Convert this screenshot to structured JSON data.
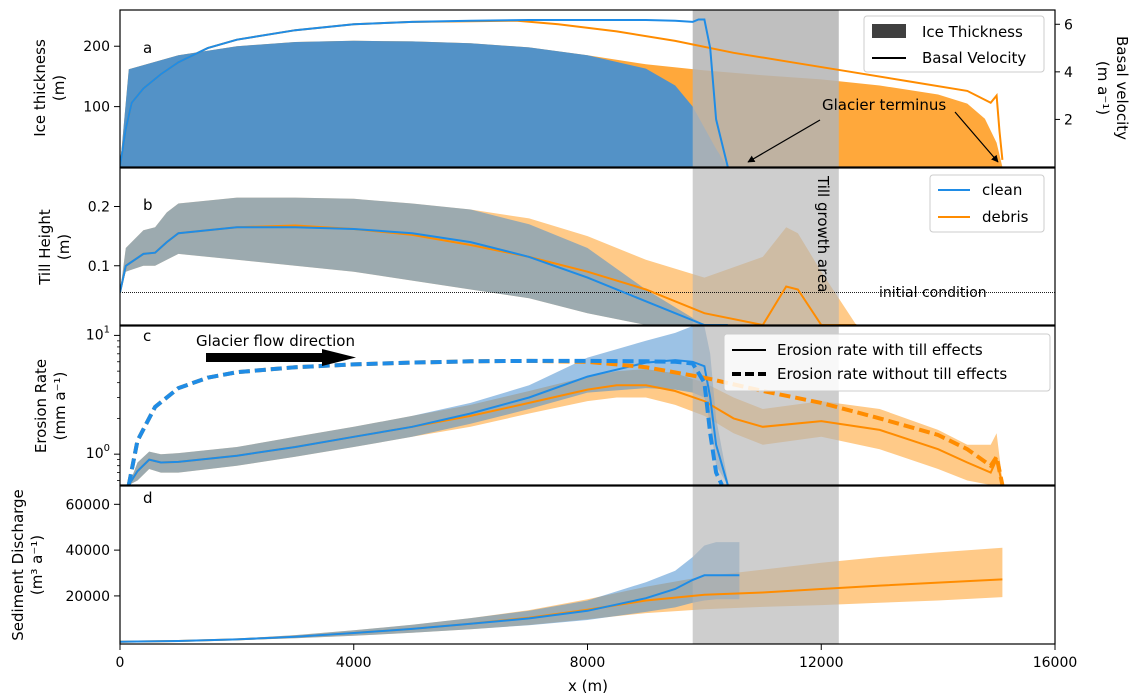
{
  "figure": {
    "xlabel": "x (m)",
    "x_ticks": [
      0,
      4000,
      8000,
      12000,
      16000
    ],
    "xlim": [
      0,
      16000
    ],
    "colors": {
      "clean": "#1f8ce6",
      "debris": "#ff8c00",
      "clean_fill": "#4a90cf",
      "debris_fill": "#ff9f26",
      "shade": "#b4b4b4"
    }
  },
  "panels": {
    "a": {
      "letter": "a",
      "ylabel_line1": "Ice thickness",
      "ylabel_line2": "(m)",
      "ylabel2_line1": "Basal velocity",
      "ylabel2_line2": "(m a⁻¹)",
      "legend_thickness": "Ice Thickness",
      "legend_velocity": "Basal Velocity",
      "annotation": "Glacier terminus"
    },
    "b": {
      "letter": "b",
      "ylabel_line1": "Till Height",
      "ylabel_line2": "(m)",
      "legend_clean": "clean",
      "legend_debris": "debris",
      "vertical_label": "Till growth area",
      "initial_label": "initial condition"
    },
    "c": {
      "letter": "c",
      "ylabel_line1": "Erosion Rate",
      "ylabel_line2": "(mm a⁻¹)",
      "legend_with": "Erosion rate with till effects",
      "legend_without": "Erosion rate without till effects",
      "arrow_label": "Glacier flow direction"
    },
    "d": {
      "letter": "d",
      "ylabel_line1": "Sediment Discharge",
      "ylabel_line2": "(m³ a⁻¹)"
    }
  },
  "chart_data": [
    {
      "panel": "a",
      "type": "area",
      "ylim": [
        0,
        260
      ],
      "y_ticks": [
        100,
        200
      ],
      "y2lim": [
        0,
        6.6
      ],
      "y2_ticks": [
        2,
        4,
        6
      ],
      "shaded_band_x": [
        9800,
        12300
      ],
      "series": [
        {
          "name": "clean",
          "kind": "thickness",
          "x": [
            0,
            150,
            1000,
            2000,
            3000,
            4000,
            5000,
            6000,
            7000,
            8000,
            9000,
            9500,
            9800,
            10000,
            10200,
            10400
          ],
          "y": [
            0,
            162,
            185,
            200,
            207,
            209,
            208,
            205,
            198,
            185,
            163,
            135,
            100,
            65,
            30,
            0
          ]
        },
        {
          "name": "debris",
          "kind": "thickness",
          "x": [
            0,
            150,
            1000,
            2000,
            3000,
            4000,
            5000,
            6000,
            7000,
            8000,
            9000,
            10000,
            11000,
            12000,
            13000,
            14000,
            14500,
            14800,
            15000,
            15100
          ],
          "y": [
            0,
            162,
            185,
            200,
            207,
            209,
            208,
            205,
            198,
            185,
            170,
            160,
            152,
            145,
            135,
            120,
            105,
            80,
            40,
            0
          ]
        },
        {
          "name": "clean",
          "kind": "velocity",
          "x": [
            0,
            100,
            200,
            400,
            700,
            1000,
            1500,
            2000,
            3000,
            4000,
            5000,
            6000,
            7000,
            8000,
            9000,
            9500,
            9800,
            9900,
            10000,
            10100,
            10200,
            10400
          ],
          "y": [
            0.0,
            1.6,
            2.7,
            3.3,
            3.9,
            4.4,
            5.0,
            5.35,
            5.75,
            6.0,
            6.1,
            6.15,
            6.18,
            6.18,
            6.18,
            6.15,
            6.1,
            6.2,
            6.2,
            5.0,
            2.0,
            0.0
          ]
        },
        {
          "name": "debris",
          "kind": "velocity",
          "x": [
            0,
            100,
            200,
            400,
            700,
            1000,
            1500,
            2000,
            3000,
            4000,
            5000,
            6000,
            6800,
            7500,
            8500,
            9500,
            10500,
            11500,
            12500,
            13500,
            14500,
            14900,
            15000,
            15050,
            15100
          ],
          "y": [
            0.0,
            1.6,
            2.7,
            3.3,
            3.9,
            4.4,
            5.0,
            5.35,
            5.75,
            6.0,
            6.1,
            6.13,
            6.15,
            6.0,
            5.7,
            5.3,
            4.8,
            4.4,
            4.0,
            3.6,
            3.2,
            2.7,
            3.0,
            1.5,
            0.3
          ]
        }
      ]
    },
    {
      "panel": "b",
      "type": "line",
      "ylim": [
        0,
        0.265
      ],
      "y_ticks": [
        0.1,
        0.2
      ],
      "initial_condition": 0.055,
      "shaded_band_x": [
        9800,
        12300
      ],
      "series": [
        {
          "name": "clean",
          "x": [
            0,
            100,
            400,
            600,
            800,
            1000,
            2000,
            3000,
            4000,
            5000,
            6000,
            7000,
            8000,
            9000,
            10000,
            10400
          ],
          "y": [
            0.055,
            0.1,
            0.12,
            0.122,
            0.14,
            0.155,
            0.165,
            0.165,
            0.162,
            0.155,
            0.14,
            0.115,
            0.08,
            0.04,
            0.0,
            0.0
          ],
          "band_lower": [
            0.055,
            0.09,
            0.1,
            0.1,
            0.11,
            0.12,
            0.11,
            0.1,
            0.09,
            0.075,
            0.06,
            0.045,
            0.02,
            0.0,
            0.0,
            0.0
          ],
          "band_upper": [
            0.055,
            0.13,
            0.16,
            0.165,
            0.19,
            0.205,
            0.215,
            0.215,
            0.213,
            0.205,
            0.195,
            0.17,
            0.13,
            0.06,
            0.0,
            0.0
          ]
        },
        {
          "name": "debris",
          "x": [
            0,
            100,
            400,
            600,
            800,
            1000,
            2000,
            3000,
            4000,
            5000,
            6000,
            7000,
            8000,
            9000,
            10000,
            11000,
            11400,
            11600,
            12000,
            12600
          ],
          "y": [
            0.055,
            0.1,
            0.12,
            0.122,
            0.14,
            0.155,
            0.165,
            0.168,
            0.162,
            0.152,
            0.135,
            0.115,
            0.09,
            0.06,
            0.02,
            0.0,
            0.065,
            0.06,
            0.0,
            0.0
          ],
          "band_lower": [
            0.055,
            0.09,
            0.1,
            0.1,
            0.11,
            0.12,
            0.11,
            0.1,
            0.09,
            0.075,
            0.06,
            0.045,
            0.02,
            0.0,
            0.0,
            0.0,
            0.0,
            0.0,
            0.0,
            0.0
          ],
          "band_upper": [
            0.055,
            0.13,
            0.16,
            0.165,
            0.19,
            0.205,
            0.215,
            0.215,
            0.213,
            0.205,
            0.195,
            0.18,
            0.15,
            0.11,
            0.08,
            0.115,
            0.165,
            0.155,
            0.09,
            0.0
          ]
        }
      ]
    },
    {
      "panel": "c",
      "type": "line",
      "yscale": "log",
      "ylim": [
        0.55,
        12
      ],
      "y_ticks": [
        1,
        10
      ],
      "shaded_band_x": [
        9800,
        12300
      ],
      "series": [
        {
          "name": "clean",
          "style": "with till effects",
          "x": [
            150,
            300,
            500,
            700,
            1000,
            2000,
            3000,
            4000,
            5000,
            6000,
            7000,
            8000,
            9000,
            9500,
            9800,
            10000,
            10100,
            10200,
            10400
          ],
          "y": [
            0.55,
            0.72,
            0.9,
            0.85,
            0.86,
            0.97,
            1.15,
            1.4,
            1.7,
            2.2,
            3.0,
            4.5,
            5.9,
            6.2,
            6.0,
            5.5,
            3.0,
            1.2,
            0.5
          ],
          "band_lower": [
            0.55,
            0.6,
            0.75,
            0.7,
            0.7,
            0.8,
            0.95,
            1.15,
            1.4,
            1.8,
            2.4,
            3.3,
            3.6,
            3.5,
            3.3,
            3.0,
            1.8,
            0.8,
            0.4
          ],
          "band_upper": [
            0.55,
            0.85,
            1.05,
            1.0,
            1.02,
            1.15,
            1.4,
            1.7,
            2.1,
            2.7,
            3.8,
            6.5,
            9.0,
            10.5,
            12.0,
            12.0,
            7.0,
            2.0,
            0.6
          ]
        },
        {
          "name": "clean",
          "style": "without till effects",
          "x": [
            150,
            300,
            600,
            1000,
            1500,
            2000,
            3000,
            4000,
            5000,
            6000,
            7000,
            8000,
            9000,
            9500,
            9800,
            10000,
            10100,
            10200,
            10300
          ],
          "y": [
            0.55,
            1.3,
            2.5,
            3.6,
            4.4,
            4.9,
            5.4,
            5.7,
            5.9,
            6.05,
            6.1,
            6.1,
            6.05,
            6.0,
            5.8,
            4.0,
            1.5,
            0.7,
            0.5
          ]
        },
        {
          "name": "debris",
          "style": "with till effects",
          "x": [
            150,
            300,
            500,
            700,
            1000,
            2000,
            3000,
            4000,
            5000,
            6000,
            7000,
            8000,
            8500,
            9000,
            9500,
            10000,
            10500,
            11000,
            12000,
            13000,
            14000,
            14500,
            14900,
            15000,
            15100
          ],
          "y": [
            0.55,
            0.72,
            0.9,
            0.85,
            0.86,
            0.97,
            1.15,
            1.4,
            1.7,
            2.1,
            2.7,
            3.5,
            3.8,
            3.8,
            3.4,
            2.8,
            2.0,
            1.7,
            1.9,
            1.6,
            1.1,
            0.85,
            0.7,
            0.9,
            0.55
          ],
          "band_lower": [
            0.55,
            0.6,
            0.75,
            0.7,
            0.7,
            0.8,
            0.95,
            1.15,
            1.4,
            1.7,
            2.2,
            2.8,
            3.0,
            3.0,
            2.6,
            2.1,
            1.5,
            1.2,
            1.4,
            1.1,
            0.75,
            0.6,
            0.55,
            0.55,
            0.55
          ],
          "band_upper": [
            0.55,
            0.85,
            1.05,
            1.0,
            1.02,
            1.15,
            1.4,
            1.7,
            2.1,
            2.6,
            3.4,
            4.5,
            5.0,
            5.2,
            4.8,
            4.0,
            3.0,
            2.4,
            2.8,
            2.4,
            1.6,
            1.2,
            1.2,
            1.5,
            0.6
          ]
        },
        {
          "name": "debris",
          "style": "without till effects",
          "x": [
            150,
            300,
            600,
            1000,
            1500,
            2000,
            3000,
            4000,
            5000,
            6000,
            7000,
            8000,
            9000,
            10000,
            11000,
            12000,
            13000,
            14000,
            14500,
            14900,
            15000,
            15100
          ],
          "y": [
            0.55,
            1.3,
            2.5,
            3.6,
            4.4,
            4.9,
            5.4,
            5.7,
            5.9,
            6.05,
            6.1,
            6.0,
            5.4,
            4.4,
            3.4,
            2.7,
            2.0,
            1.45,
            1.1,
            0.8,
            0.95,
            0.55
          ]
        }
      ]
    },
    {
      "panel": "d",
      "type": "line",
      "ylim": [
        -1000,
        68000
      ],
      "y_ticks": [
        20000,
        40000,
        60000
      ],
      "shaded_band_x": [
        9800,
        12300
      ],
      "series": [
        {
          "name": "clean",
          "x": [
            0,
            1000,
            2000,
            3000,
            4000,
            5000,
            6000,
            7000,
            8000,
            9000,
            9500,
            9800,
            10000,
            10200,
            10500,
            10600
          ],
          "y": [
            0,
            300,
            1000,
            2200,
            3800,
            5600,
            7800,
            10200,
            13500,
            19000,
            23000,
            27000,
            29000,
            29000,
            29000,
            29000
          ],
          "band_lower": [
            0,
            200,
            700,
            1500,
            2600,
            3900,
            5400,
            7200,
            9500,
            13000,
            15000,
            17000,
            18000,
            18500,
            18500,
            18500
          ],
          "band_upper": [
            0,
            400,
            1300,
            2900,
            5000,
            7400,
            10300,
            13500,
            18000,
            26000,
            31000,
            37000,
            42000,
            43500,
            43500,
            43500
          ]
        },
        {
          "name": "debris",
          "x": [
            0,
            1000,
            2000,
            3000,
            4000,
            5000,
            6000,
            7000,
            8000,
            9000,
            10000,
            11000,
            12000,
            13000,
            14000,
            15100
          ],
          "y": [
            0,
            300,
            1000,
            2200,
            3800,
            5600,
            7800,
            10500,
            14000,
            18000,
            20500,
            21500,
            23000,
            24500,
            25800,
            27200
          ],
          "band_lower": [
            0,
            200,
            700,
            1500,
            2600,
            3900,
            5400,
            7300,
            9800,
            12500,
            14200,
            15200,
            16000,
            17000,
            18000,
            19500
          ],
          "band_upper": [
            0,
            400,
            1300,
            2900,
            5000,
            7400,
            10300,
            13800,
            18500,
            24000,
            28500,
            31500,
            34500,
            37000,
            39000,
            41000
          ]
        }
      ]
    }
  ]
}
